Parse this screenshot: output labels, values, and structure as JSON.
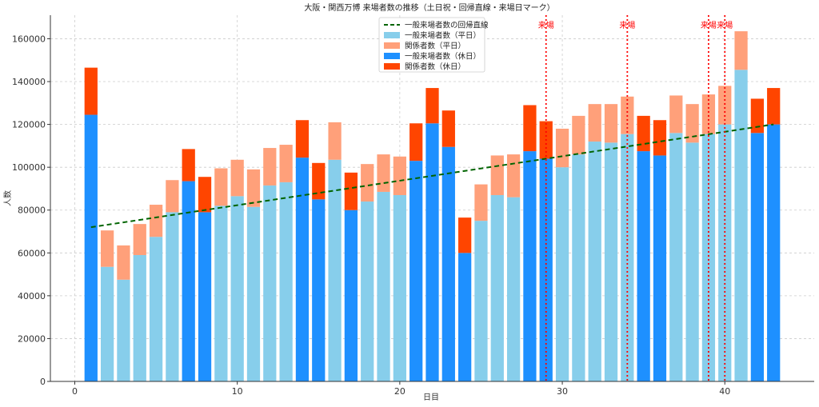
{
  "chart_data": {
    "type": "bar",
    "title": "大阪・関西万博 来場者数の推移（土日祝・回帰直線・来場日マーク）",
    "xlabel": "日目",
    "ylabel": "人数",
    "xlim": [
      -1.5,
      45.5
    ],
    "ylim": [
      0,
      171000
    ],
    "xticks": [
      0,
      10,
      20,
      30,
      40
    ],
    "yticks": [
      0,
      20000,
      40000,
      60000,
      80000,
      100000,
      120000,
      140000,
      160000
    ],
    "grid": true,
    "legend_position": "top-center",
    "colors": {
      "weekday_general": "#87ceeb",
      "weekday_related": "#ffa07a",
      "holiday_general": "#1e90ff",
      "holiday_related": "#ff4500",
      "regression": "#006400",
      "visit_marker": "#ff0000"
    },
    "legend": [
      {
        "key": "regression",
        "label": "一般来場者数の回帰直線"
      },
      {
        "key": "weekday_general",
        "label": "一般来場者数（平日）"
      },
      {
        "key": "weekday_related",
        "label": "関係者数（平日）"
      },
      {
        "key": "holiday_general",
        "label": "一般来場者数（休日）"
      },
      {
        "key": "holiday_related",
        "label": "関係者数（休日）"
      }
    ],
    "days": [
      1,
      2,
      3,
      4,
      5,
      6,
      7,
      8,
      9,
      10,
      11,
      12,
      13,
      14,
      15,
      16,
      17,
      18,
      19,
      20,
      21,
      22,
      23,
      24,
      25,
      26,
      27,
      28,
      29,
      30,
      31,
      32,
      33,
      34,
      35,
      36,
      37,
      38,
      39,
      40,
      41,
      42,
      43
    ],
    "holiday": [
      true,
      false,
      false,
      false,
      false,
      false,
      true,
      true,
      false,
      false,
      false,
      false,
      false,
      true,
      true,
      false,
      true,
      false,
      false,
      false,
      true,
      true,
      true,
      true,
      false,
      false,
      false,
      true,
      true,
      false,
      false,
      false,
      false,
      false,
      true,
      true,
      false,
      false,
      false,
      false,
      false,
      true,
      true
    ],
    "general": [
      124500,
      53500,
      47500,
      59000,
      67500,
      79000,
      93500,
      79000,
      82000,
      86500,
      81500,
      91500,
      93000,
      104500,
      85000,
      103500,
      80000,
      84000,
      88500,
      87000,
      103000,
      120500,
      109500,
      60000,
      75000,
      87000,
      86000,
      107500,
      104000,
      100000,
      106000,
      112000,
      111500,
      115500,
      107500,
      105500,
      116000,
      111500,
      115500,
      120000,
      145500,
      116000,
      120000
    ],
    "related": [
      22000,
      17000,
      16000,
      14500,
      15000,
      15000,
      15000,
      16500,
      17500,
      17000,
      17500,
      17500,
      17500,
      17500,
      17000,
      17500,
      17500,
      17500,
      17500,
      18000,
      17500,
      16500,
      17000,
      16500,
      17000,
      18500,
      20000,
      21500,
      17500,
      18000,
      18000,
      17500,
      18000,
      17500,
      16500,
      16500,
      17500,
      18000,
      18500,
      18000,
      18000,
      16000,
      17000
    ],
    "regression": {
      "x": [
        1,
        43
      ],
      "y": [
        72000,
        120000
      ]
    },
    "visit_markers": {
      "days": [
        29,
        34,
        39,
        40
      ],
      "label": "来場"
    }
  }
}
